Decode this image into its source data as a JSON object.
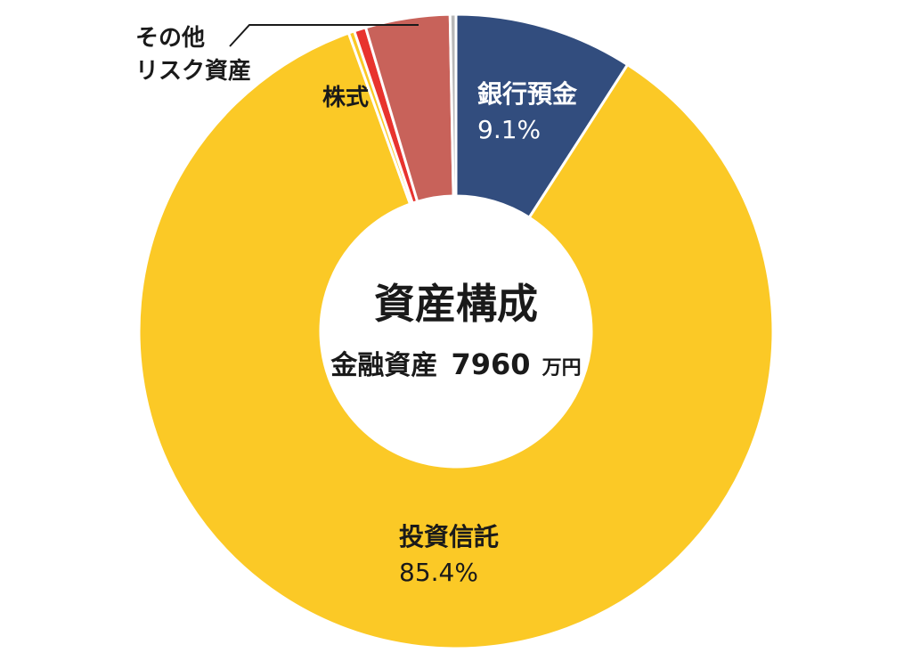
{
  "chart_data": {
    "type": "pie",
    "donut": true,
    "center_title": "資産構成",
    "center_subtitle_label": "金融資産",
    "center_subtitle_value": "7960",
    "center_subtitle_unit": "万円",
    "slices": [
      {
        "label": "銀行預金",
        "value": 9.1,
        "value_label": "9.1%",
        "color": "#324d7e"
      },
      {
        "label": "投資信託",
        "value": 85.4,
        "value_label": "85.4%",
        "color": "#fbc926"
      },
      {
        "label": "",
        "value": 0.3,
        "value_label": "",
        "color": "#fbc926"
      },
      {
        "label": "その他リスク資産",
        "value": 0.6,
        "value_label": "",
        "color": "#e8332e"
      },
      {
        "label": "株式",
        "value": 4.3,
        "value_label": "",
        "color": "#c8625a"
      },
      {
        "label": "",
        "value": 0.3,
        "value_label": "",
        "color": "#b8b8b8"
      }
    ],
    "annotations": {
      "other_line1": "その他",
      "other_line2": "リスク資産"
    }
  }
}
